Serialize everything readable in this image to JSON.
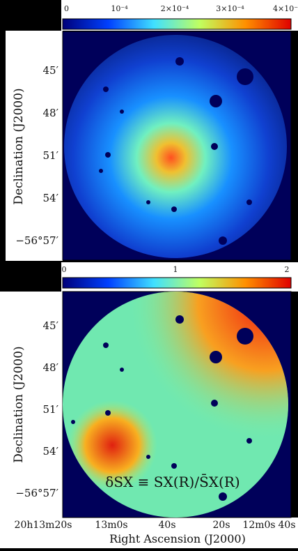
{
  "top_panel": {
    "colorbar_ticks": [
      "0",
      "10⁻⁴",
      "2×10⁻⁴",
      "3×10⁻⁴",
      "4×10⁻"
    ],
    "y_label": "Declination (J2000)",
    "y_ticks": [
      "45′",
      "48′",
      "51′",
      "54′",
      "−56°57′"
    ]
  },
  "bottom_panel": {
    "colorbar_ticks": [
      "0",
      "1",
      "2"
    ],
    "y_label": "Declination (J2000)",
    "y_ticks": [
      "45′",
      "48′",
      "51′",
      "54′",
      "−56°57′"
    ],
    "annotation": "δSX ≡ SX(R)/S̄X(R)",
    "x_ticks": [
      "20h13m20s",
      "13m0s",
      "40s",
      "20s",
      "12m0s",
      "40s"
    ],
    "x_label": "Right Ascension (J2000)"
  }
}
